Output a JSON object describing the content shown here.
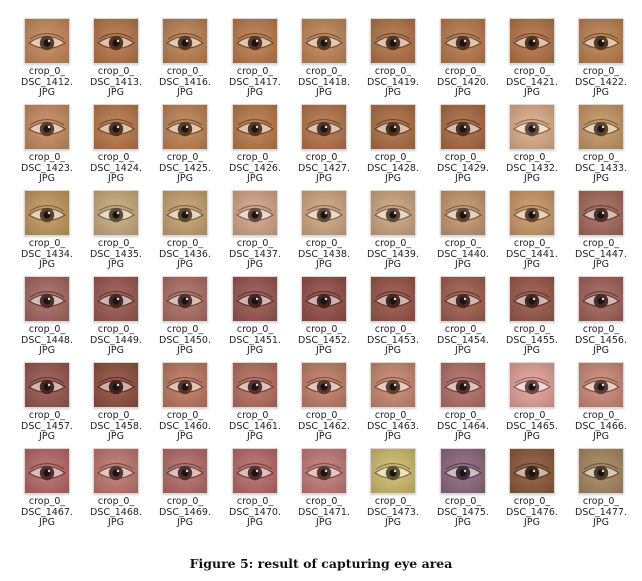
{
  "label_prefix": "crop_0_",
  "label_ext": "JPG",
  "rows": [
    {
      "files": [
        "DSC_1412.",
        "DSC_1413.",
        "DSC_1416.",
        "DSC_1417.",
        "DSC_1418.",
        "DSC_1419.",
        "DSC_1420.",
        "DSC_1421.",
        "DSC_1422."
      ],
      "skin": [
        "#c88a5c",
        "#b9784c",
        "#c08352",
        "#be7e4d",
        "#c4875a",
        "#b6754a",
        "#bb7b4e",
        "#b77648",
        "#c08250"
      ]
    },
    {
      "files": [
        "DSC_1423.",
        "DSC_1424.",
        "DSC_1425.",
        "DSC_1426.",
        "DSC_1427.",
        "DSC_1428.",
        "DSC_1429.",
        "DSC_1432.",
        "DSC_1433."
      ],
      "skin": [
        "#c98d62",
        "#bb7a4b",
        "#c28554",
        "#bd7c4b",
        "#b8764a",
        "#b17046",
        "#ad6c44",
        "#e0b08a",
        "#c99a66"
      ]
    },
    {
      "files": [
        "DSC_1434.",
        "DSC_1435.",
        "DSC_1436.",
        "DSC_1437.",
        "DSC_1438.",
        "DSC_1439.",
        "DSC_1440.",
        "DSC_1441.",
        "DSC_1447."
      ],
      "skin": [
        "#c69a62",
        "#ccae80",
        "#caa470",
        "#d8a88a",
        "#d4aa84",
        "#cfa882",
        "#c99870",
        "#cf9a68",
        "#a96a5c"
      ]
    },
    {
      "files": [
        "DSC_1448.",
        "DSC_1449.",
        "DSC_1450.",
        "DSC_1451.",
        "DSC_1452.",
        "DSC_1453.",
        "DSC_1454.",
        "DSC_1455.",
        "DSC_1456."
      ],
      "skin": [
        "#a76a62",
        "#9c5a50",
        "#b07064",
        "#9a5850",
        "#975048",
        "#9c5648",
        "#a2604f",
        "#9b5a4c",
        "#a4645a"
      ]
    },
    {
      "files": [
        "DSC_1457.",
        "DSC_1458.",
        "DSC_1460.",
        "DSC_1461.",
        "DSC_1462.",
        "DSC_1463.",
        "DSC_1464.",
        "DSC_1465.",
        "DSC_1466."
      ],
      "skin": [
        "#9a5850",
        "#93503f",
        "#c27a60",
        "#b87060",
        "#c48068",
        "#cc8a70",
        "#b57068",
        "#e6a49a",
        "#cf8a78"
      ]
    },
    {
      "files": [
        "DSC_1467.",
        "DSC_1468.",
        "DSC_1469.",
        "DSC_1470.",
        "DSC_1471.",
        "DSC_1473.",
        "DSC_1475.",
        "DSC_1476.",
        "DSC_1477."
      ],
      "skin": [
        "#b86a68",
        "#c27a70",
        "#b86e6a",
        "#ba6c6a",
        "#c57c78",
        "#d2bf70",
        "#8f6a80",
        "#8f5a3a",
        "#aa8a62"
      ]
    }
  ],
  "caption": "Figure 5: result of capturing eye area"
}
